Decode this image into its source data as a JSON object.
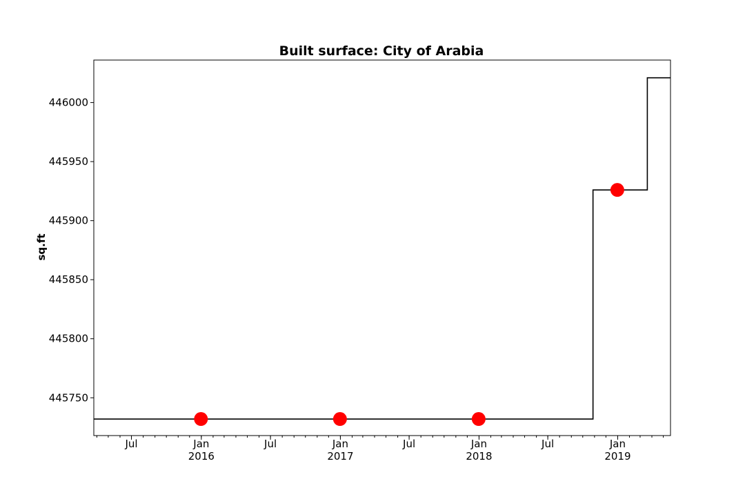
{
  "chart_data": {
    "type": "line",
    "title": "Built surface: City of Arabia",
    "xlabel": "",
    "ylabel": "sq.ft",
    "xlim": [
      "2015-03-24",
      "2019-05-20"
    ],
    "ylim": [
      445718,
      446036
    ],
    "grid": false,
    "step_series": {
      "x": [
        "2015-03-24",
        "2018-10-28",
        "2019-03-20",
        "2019-05-20"
      ],
      "y": [
        445732,
        445926,
        446021,
        446021
      ]
    },
    "markers": {
      "color": "#ff0000",
      "x": [
        "2015-12-31",
        "2016-12-31",
        "2017-12-31",
        "2018-12-31"
      ],
      "y": [
        445732,
        445732,
        445732,
        445926
      ]
    },
    "y_ticks": [
      {
        "value": 445750,
        "label": "445750"
      },
      {
        "value": 445800,
        "label": "445800"
      },
      {
        "value": 445850,
        "label": "445850"
      },
      {
        "value": 445900,
        "label": "445900"
      },
      {
        "value": 445950,
        "label": "445950"
      },
      {
        "value": 446000,
        "label": "446000"
      }
    ],
    "x_major_ticks": [
      {
        "date": "2015-07-01",
        "label": "Jul"
      },
      {
        "date": "2016-01-01",
        "label": "Jan\n2016"
      },
      {
        "date": "2016-07-01",
        "label": "Jul"
      },
      {
        "date": "2017-01-01",
        "label": "Jan\n2017"
      },
      {
        "date": "2017-07-01",
        "label": "Jul"
      },
      {
        "date": "2018-01-01",
        "label": "Jan\n2018"
      },
      {
        "date": "2018-07-01",
        "label": "Jul"
      },
      {
        "date": "2019-01-01",
        "label": "Jan\n2019"
      }
    ]
  }
}
